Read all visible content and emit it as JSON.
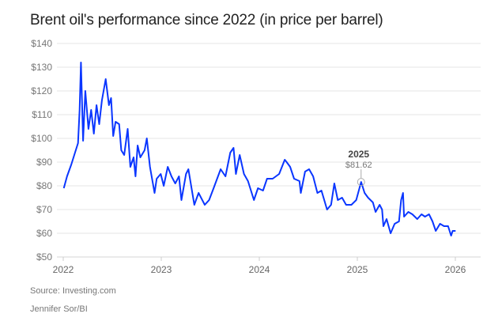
{
  "chart_data": {
    "type": "line",
    "title": "Brent oil's performance since 2022 (in price per barrel)",
    "xlabel": "",
    "ylabel": "",
    "xlim": [
      "2022-01-01",
      "2026-01-01"
    ],
    "ylim": [
      50,
      140
    ],
    "x_ticks": [
      "2022",
      "2023",
      "2024",
      "2025",
      "2026"
    ],
    "y_ticks": [
      "$50",
      "$60",
      "$70",
      "$80",
      "$90",
      "$100",
      "$110",
      "$120",
      "$130",
      "$140"
    ],
    "grid": "horizontal",
    "line_color": "#0a36ff",
    "annotation": {
      "label": "2025",
      "value_label": "$81.62",
      "date": "2025-01-15",
      "value": 81.62
    },
    "series": [
      {
        "points": [
          [
            "2022-01-03",
            79
          ],
          [
            "2022-01-15",
            84
          ],
          [
            "2022-01-31",
            89
          ],
          [
            "2022-02-14",
            94
          ],
          [
            "2022-02-25",
            98
          ],
          [
            "2022-03-03",
            112
          ],
          [
            "2022-03-08",
            132
          ],
          [
            "2022-03-16",
            99
          ],
          [
            "2022-03-24",
            120
          ],
          [
            "2022-04-05",
            104
          ],
          [
            "2022-04-15",
            112
          ],
          [
            "2022-04-25",
            102
          ],
          [
            "2022-05-05",
            114
          ],
          [
            "2022-05-15",
            106
          ],
          [
            "2022-05-25",
            116
          ],
          [
            "2022-06-08",
            125
          ],
          [
            "2022-06-20",
            114
          ],
          [
            "2022-06-28",
            117
          ],
          [
            "2022-07-06",
            101
          ],
          [
            "2022-07-15",
            107
          ],
          [
            "2022-07-28",
            106
          ],
          [
            "2022-08-05",
            95
          ],
          [
            "2022-08-16",
            93
          ],
          [
            "2022-08-29",
            104
          ],
          [
            "2022-09-08",
            88
          ],
          [
            "2022-09-20",
            92
          ],
          [
            "2022-09-27",
            84
          ],
          [
            "2022-10-05",
            97
          ],
          [
            "2022-10-15",
            92
          ],
          [
            "2022-10-31",
            95
          ],
          [
            "2022-11-08",
            100
          ],
          [
            "2022-11-20",
            88
          ],
          [
            "2022-12-07",
            77
          ],
          [
            "2022-12-15",
            83
          ],
          [
            "2022-12-30",
            85
          ],
          [
            "2023-01-10",
            80
          ],
          [
            "2023-01-25",
            88
          ],
          [
            "2023-02-08",
            84
          ],
          [
            "2023-02-22",
            81
          ],
          [
            "2023-03-08",
            84
          ],
          [
            "2023-03-17",
            74
          ],
          [
            "2023-04-03",
            85
          ],
          [
            "2023-04-12",
            87
          ],
          [
            "2023-05-04",
            72
          ],
          [
            "2023-05-20",
            77
          ],
          [
            "2023-06-12",
            72
          ],
          [
            "2023-06-28",
            74
          ],
          [
            "2023-07-15",
            79
          ],
          [
            "2023-08-10",
            87
          ],
          [
            "2023-08-28",
            84
          ],
          [
            "2023-09-15",
            94
          ],
          [
            "2023-09-27",
            96
          ],
          [
            "2023-10-06",
            85
          ],
          [
            "2023-10-20",
            93
          ],
          [
            "2023-11-05",
            85
          ],
          [
            "2023-11-20",
            82
          ],
          [
            "2023-12-12",
            74
          ],
          [
            "2023-12-27",
            79
          ],
          [
            "2024-01-15",
            78
          ],
          [
            "2024-01-30",
            83
          ],
          [
            "2024-02-20",
            83
          ],
          [
            "2024-03-15",
            85
          ],
          [
            "2024-04-05",
            91
          ],
          [
            "2024-04-12",
            90
          ],
          [
            "2024-04-25",
            88
          ],
          [
            "2024-05-10",
            83
          ],
          [
            "2024-05-30",
            82
          ],
          [
            "2024-06-04",
            77
          ],
          [
            "2024-06-20",
            86
          ],
          [
            "2024-07-05",
            87
          ],
          [
            "2024-07-20",
            84
          ],
          [
            "2024-08-05",
            77
          ],
          [
            "2024-08-20",
            78
          ],
          [
            "2024-09-10",
            70
          ],
          [
            "2024-09-25",
            72
          ],
          [
            "2024-10-07",
            81
          ],
          [
            "2024-10-20",
            74
          ],
          [
            "2024-11-05",
            75
          ],
          [
            "2024-11-20",
            72
          ],
          [
            "2024-12-10",
            72
          ],
          [
            "2024-12-28",
            74
          ],
          [
            "2025-01-15",
            81.62
          ],
          [
            "2025-01-28",
            77
          ],
          [
            "2025-02-10",
            75
          ],
          [
            "2025-02-28",
            73
          ],
          [
            "2025-03-10",
            69
          ],
          [
            "2025-03-25",
            72
          ],
          [
            "2025-04-03",
            70
          ],
          [
            "2025-04-08",
            63
          ],
          [
            "2025-04-20",
            66
          ],
          [
            "2025-05-05",
            60
          ],
          [
            "2025-05-20",
            64
          ],
          [
            "2025-06-05",
            65
          ],
          [
            "2025-06-13",
            74
          ],
          [
            "2025-06-20",
            77
          ],
          [
            "2025-06-24",
            67
          ],
          [
            "2025-07-10",
            69
          ],
          [
            "2025-07-25",
            68
          ],
          [
            "2025-08-12",
            66
          ],
          [
            "2025-08-28",
            68
          ],
          [
            "2025-09-10",
            67
          ],
          [
            "2025-09-25",
            68
          ],
          [
            "2025-10-08",
            65
          ],
          [
            "2025-10-20",
            61
          ],
          [
            "2025-11-05",
            64
          ],
          [
            "2025-11-20",
            63
          ],
          [
            "2025-12-05",
            63
          ],
          [
            "2025-12-16",
            59
          ],
          [
            "2025-12-22",
            61
          ],
          [
            "2026-01-02",
            61
          ]
        ]
      }
    ]
  },
  "footer": {
    "source": "Source: Investing.com",
    "credit": "Jennifer Sor/BI"
  }
}
